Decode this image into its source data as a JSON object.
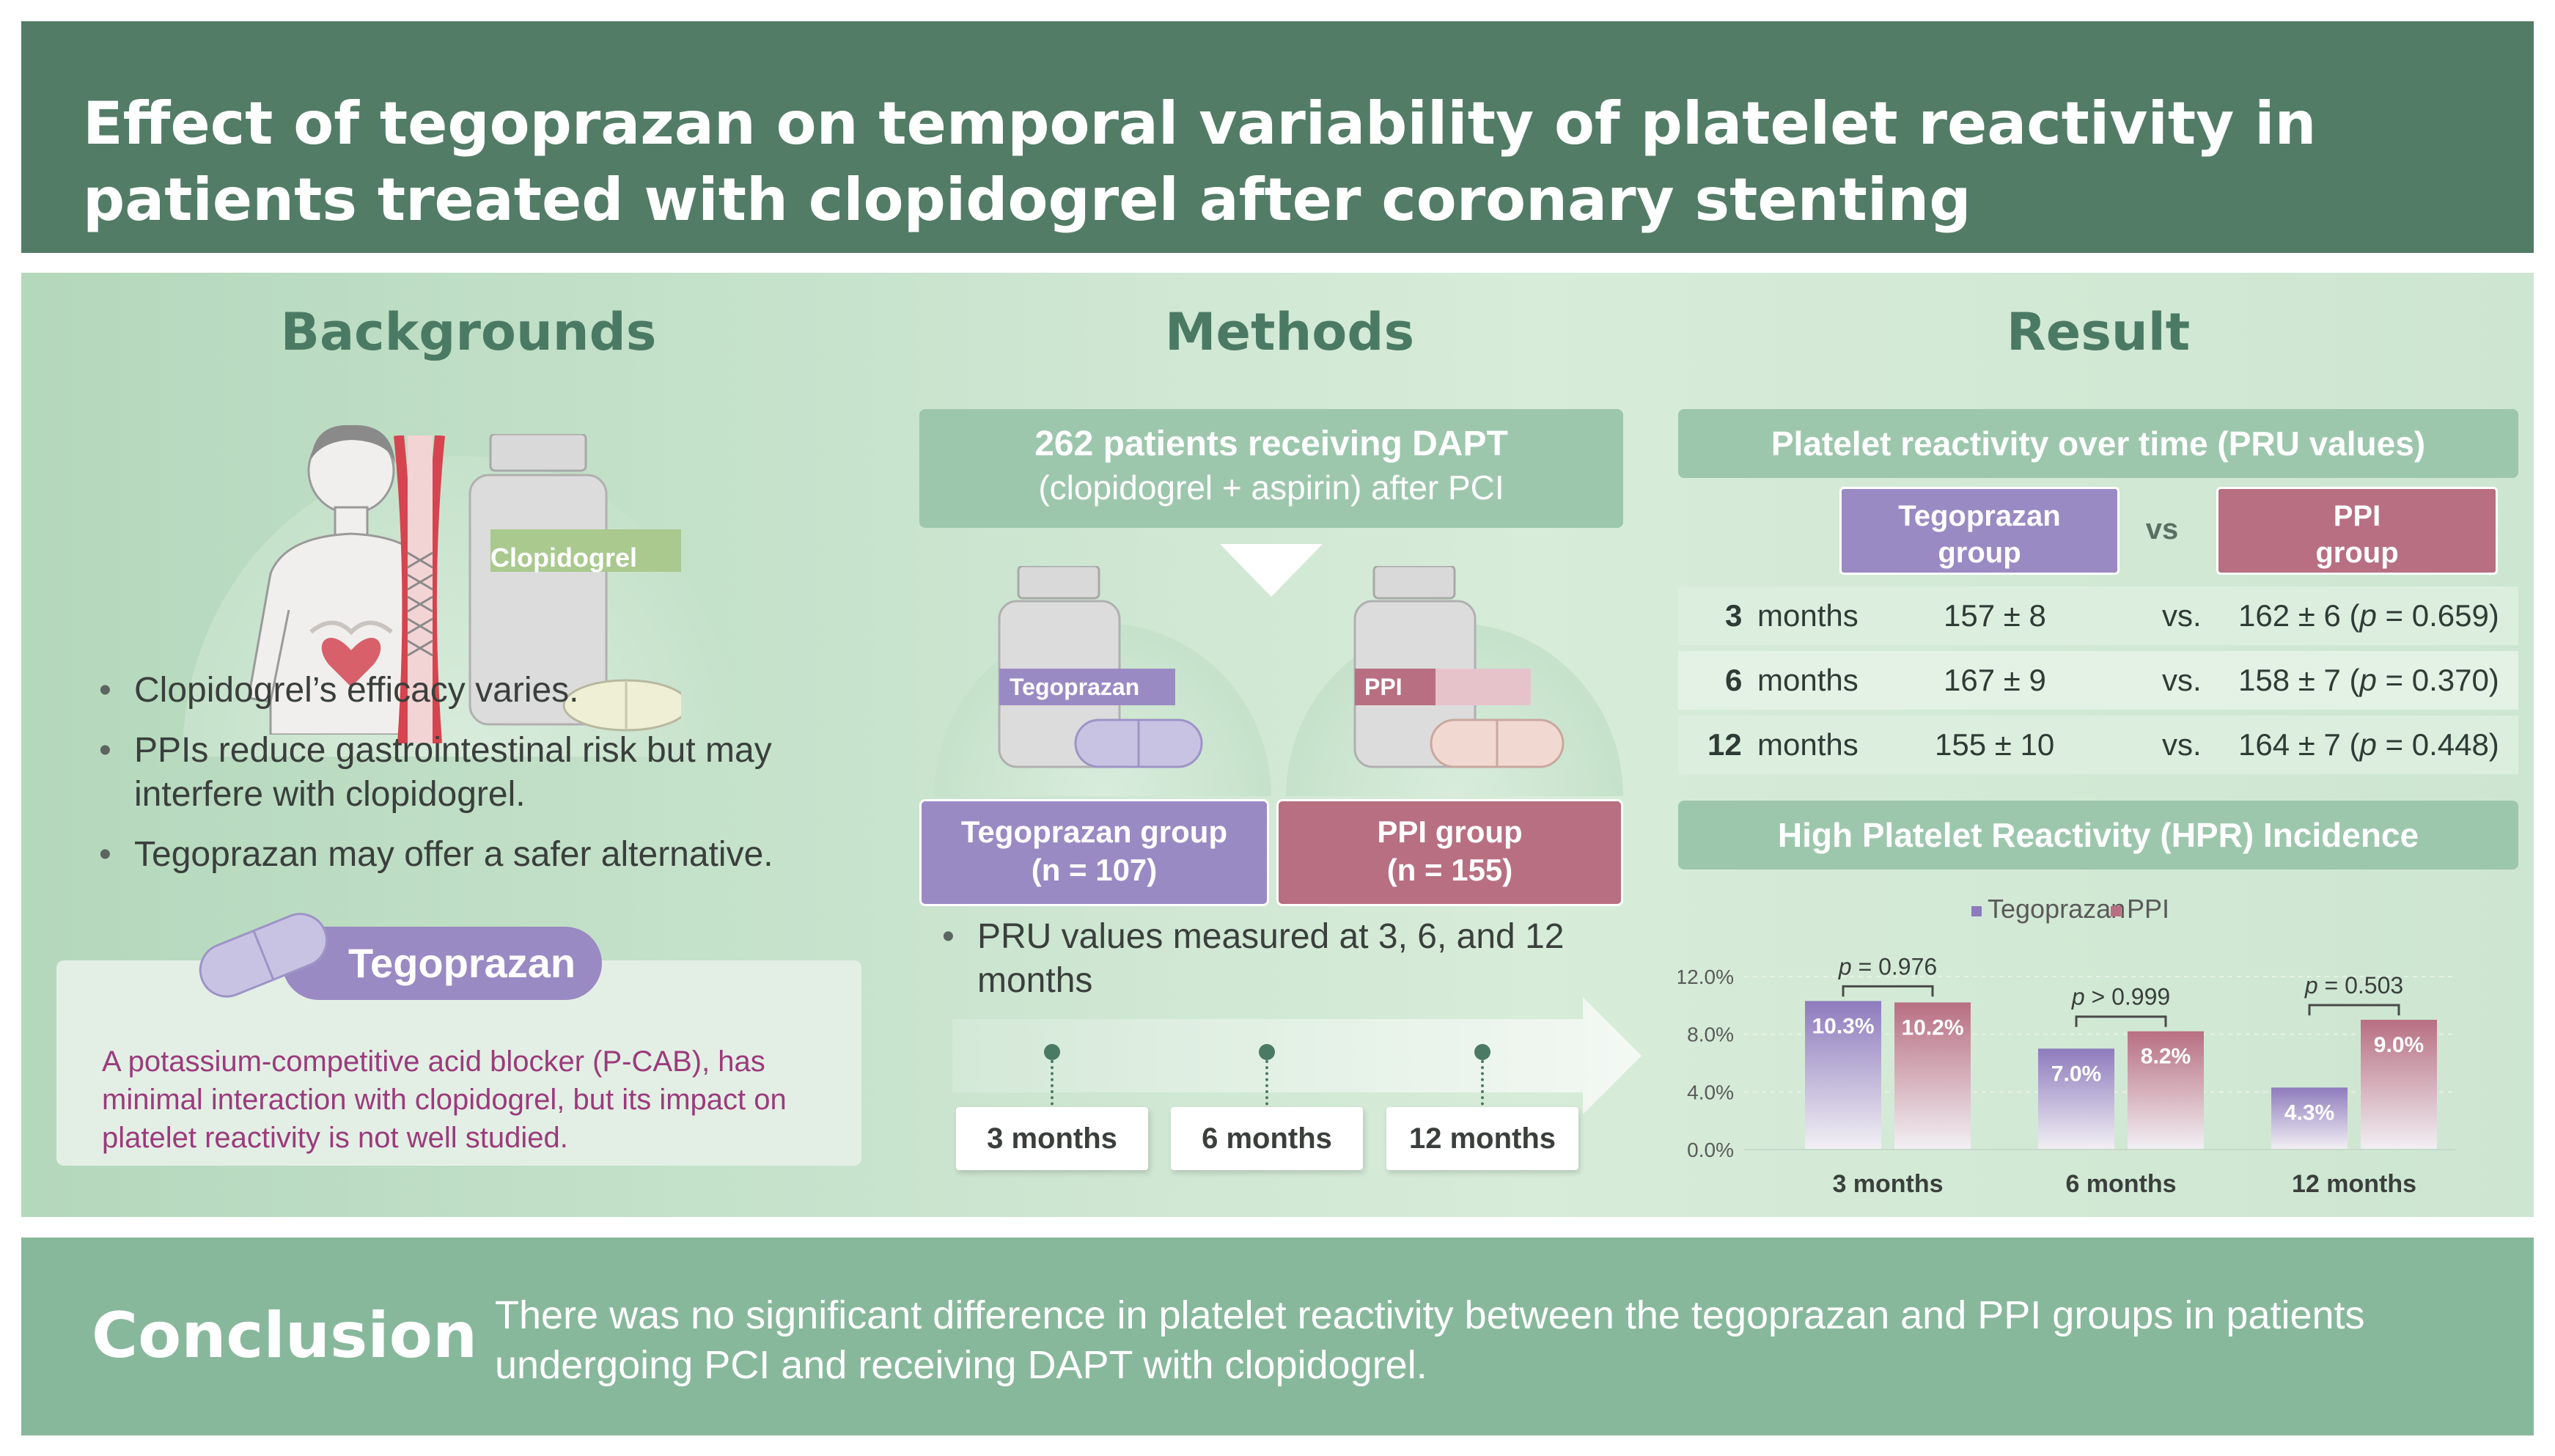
{
  "header": {
    "title": "Effect of tegoprazan on temporal variability of platelet reactivity in patients treated with clopidogrel after coronary stenting"
  },
  "backgrounds": {
    "heading": "Backgrounds",
    "bottle_label": "Clopidogrel",
    "bullets": [
      "Clopidogrel’s efficacy varies.",
      "PPIs reduce gastrointestinal risk but may interfere with clopidogrel.",
      "Tegoprazan may offer a safer alternative."
    ],
    "tegoprazan_label": "Tegoprazan",
    "tegoprazan_desc": "A potassium-competitive acid blocker (P-CAB), has minimal interaction with clopidogrel, but its impact on platelet reactivity is not well studied."
  },
  "methods": {
    "heading": "Methods",
    "patients_line1": "262 patients receiving DAPT",
    "patients_line2": "(clopidogrel + aspirin) after PCI",
    "bottle_tego_label": "Tegoprazan",
    "bottle_ppi_label": "PPI",
    "group_tego_line1": "Tegoprazan group",
    "group_tego_line2": "(n = 107)",
    "group_ppi_line1": "PPI group",
    "group_ppi_line2": "(n = 155)",
    "bullet": "PRU values measured at 3, 6, and 12 months",
    "timepoints": [
      "3 months",
      "6 months",
      "12 months"
    ]
  },
  "result": {
    "heading": "Result",
    "pru_title": "Platelet reactivity over time (PRU values)",
    "col_tego_line1": "Tegoprazan",
    "col_tego_line2": "group",
    "vs": "vs",
    "col_ppi_line1": "PPI",
    "col_ppi_line2": "group",
    "rows": [
      {
        "num": "3",
        "unit": "months",
        "tego": "157 ± 8",
        "vs": "vs.",
        "ppi": "162 ± 6 (",
        "p": "p",
        "pval": " = 0.659)"
      },
      {
        "num": "6",
        "unit": "months",
        "tego": "167 ± 9",
        "vs": "vs.",
        "ppi": "158 ± 7 (",
        "p": "p",
        "pval": " = 0.370)"
      },
      {
        "num": "12",
        "unit": "months",
        "tego": "155 ± 10",
        "vs": "vs.",
        "ppi": "164 ± 7 (",
        "p": "p",
        "pval": " = 0.448)"
      }
    ],
    "hpr_title": "High Platelet Reactivity (HPR) Incidence"
  },
  "chart_data": {
    "type": "bar",
    "categories": [
      "3 months",
      "6 months",
      "12 months"
    ],
    "series": [
      {
        "name": "Tegoprazan",
        "values": [
          10.3,
          7.0,
          4.3
        ],
        "labels": [
          "10.3%",
          "7.0%",
          "4.3%"
        ],
        "color": "#8e7bbd"
      },
      {
        "name": "PPI",
        "values": [
          10.2,
          8.2,
          9.0
        ],
        "labels": [
          "10.2%",
          "8.2%",
          "9.0%"
        ],
        "color": "#b86f82"
      }
    ],
    "ylim": [
      0,
      12
    ],
    "yticks": [
      "0.0%",
      "4.0%",
      "8.0%",
      "12.0%"
    ],
    "ytick_values": [
      0,
      4,
      8,
      12
    ],
    "annotations": [
      {
        "p": "p",
        "text": " = 0.976"
      },
      {
        "p": "p",
        "text": " > 0.999"
      },
      {
        "p": "p",
        "text": " = 0.503"
      }
    ],
    "legend": "top",
    "grid": true
  },
  "conclusion": {
    "label": "Conclusion",
    "text": "There was no significant difference in platelet reactivity between the tegoprazan and PPI groups in patients undergoing PCI and receiving DAPT with clopidogrel."
  }
}
